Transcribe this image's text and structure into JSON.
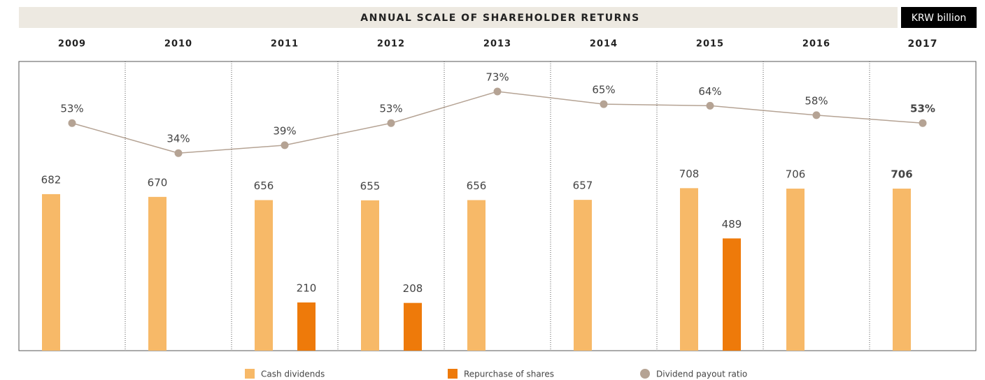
{
  "chart_data": {
    "type": "bar",
    "title": "ANNUAL SCALE OF SHAREHOLDER RETURNS",
    "unit": "KRW billion",
    "categories": [
      "2009",
      "2010",
      "2011",
      "2012",
      "2013",
      "2014",
      "2015",
      "2016",
      "2017"
    ],
    "ylim": [
      0,
      1260
    ],
    "y2lim": [
      -91,
      92
    ],
    "series": [
      {
        "name": "Cash dividends",
        "color": "#f7b968",
        "values": [
          682,
          670,
          656,
          655,
          656,
          657,
          708,
          706,
          706
        ]
      },
      {
        "name": "Repurchase of shares",
        "color": "#ee7a0a",
        "values": [
          null,
          null,
          210,
          208,
          null,
          null,
          489,
          null,
          null
        ]
      },
      {
        "name": "Dividend payout ratio",
        "color": "#b5a394",
        "axis": "y2",
        "type": "line",
        "values": [
          53,
          34,
          39,
          53,
          73,
          65,
          64,
          58,
          53
        ],
        "value_labels": [
          "53%",
          "34%",
          "39%",
          "53%",
          "73%",
          "65%",
          "64%",
          "58%",
          "53%"
        ]
      }
    ]
  }
}
